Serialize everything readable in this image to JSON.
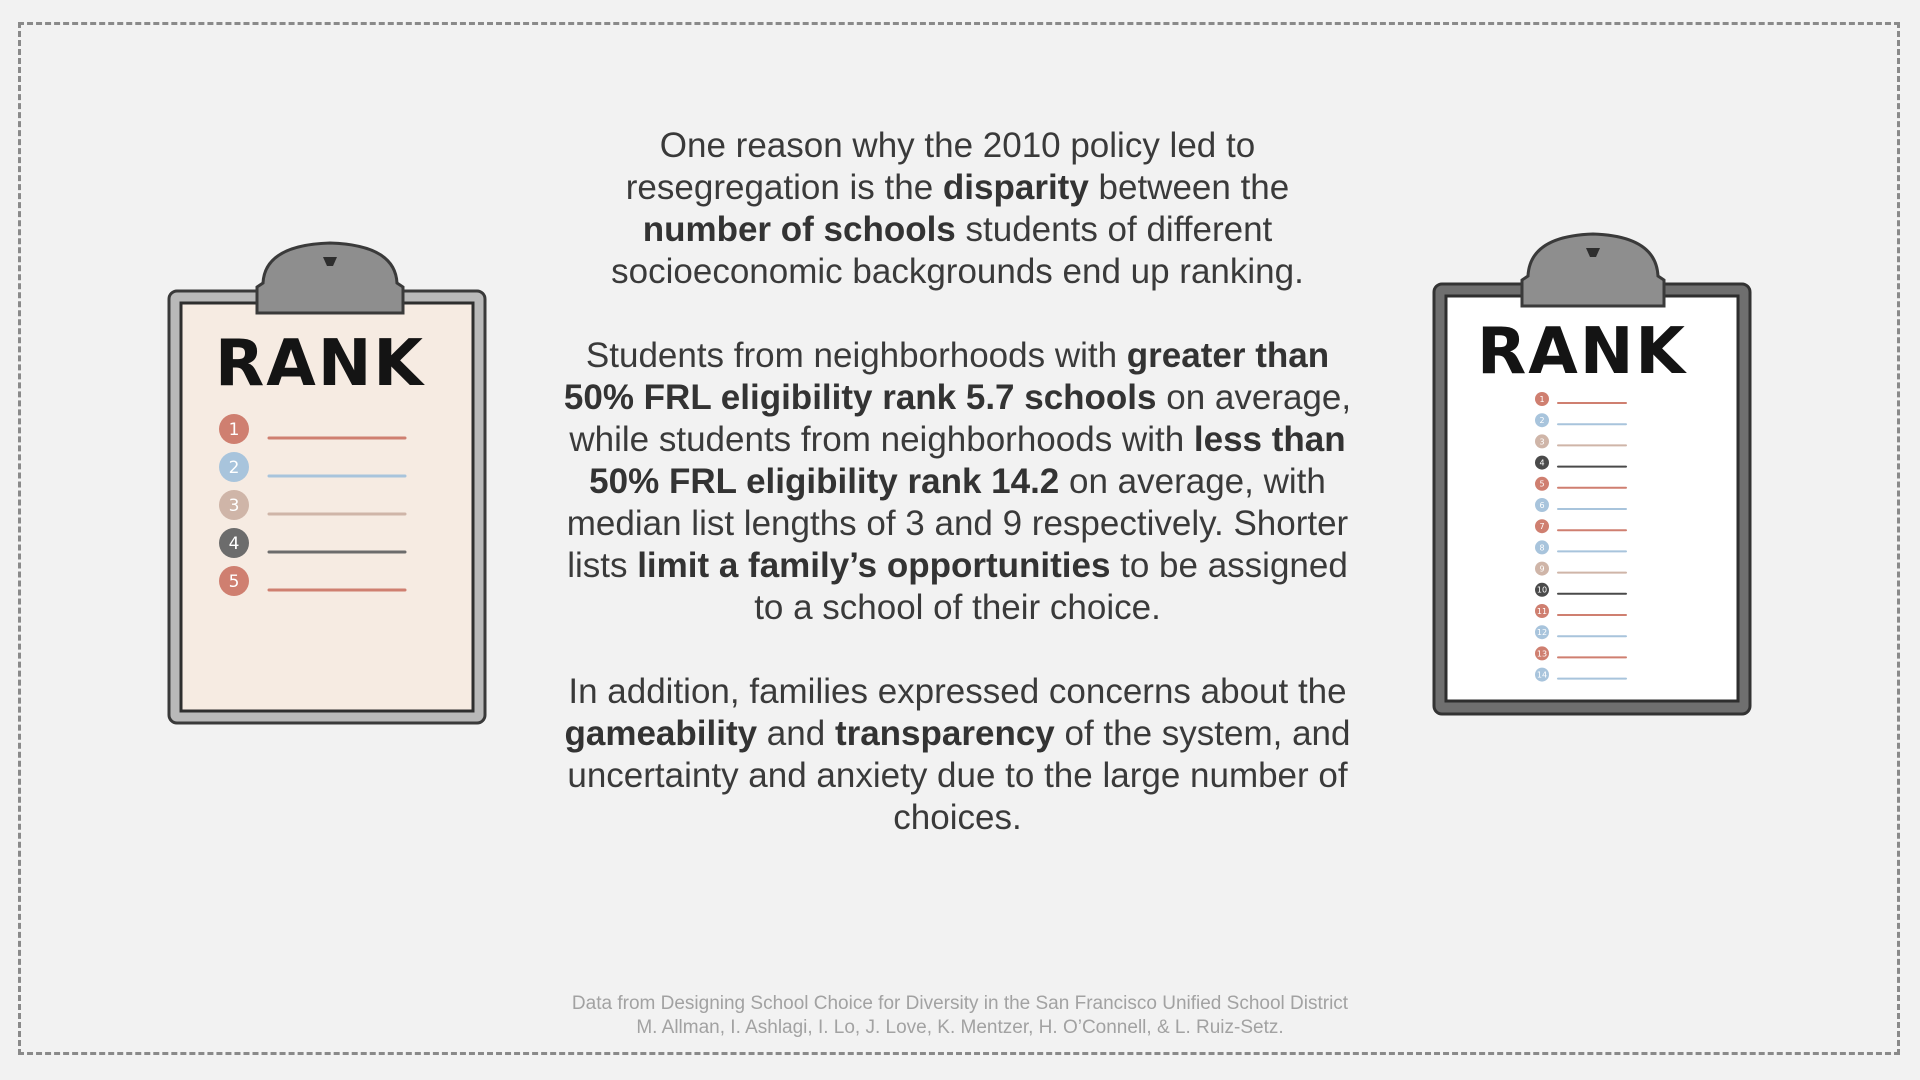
{
  "paragraphs": [
    [
      {
        "t": "One reason why the 2010 policy led to resegregation is the ",
        "b": false
      },
      {
        "t": "disparity",
        "b": true
      },
      {
        "t": " between the ",
        "b": false
      },
      {
        "t": "number of schools",
        "b": true
      },
      {
        "t": " students of different socioeconomic backgrounds end up ranking.",
        "b": false
      }
    ],
    [
      {
        "t": "Students from neighborhoods with ",
        "b": false
      },
      {
        "t": "greater than 50% FRL eligibility rank 5.7 schools",
        "b": true
      },
      {
        "t": " on average, while students from neighborhoods with ",
        "b": false
      },
      {
        "t": "less than 50% FRL eligibility rank 14.2",
        "b": true
      },
      {
        "t": " on average, with median list lengths of 3 and 9 respectively. Shorter lists ",
        "b": false
      },
      {
        "t": "limit a family’s opportunities",
        "b": true
      },
      {
        "t": " to be assigned to a school of their choice.",
        "b": false
      }
    ],
    [
      {
        "t": "In addition, families expressed concerns about the ",
        "b": false
      },
      {
        "t": "gameability",
        "b": true
      },
      {
        "t": " and ",
        "b": false
      },
      {
        "t": "transparency",
        "b": true
      },
      {
        "t": " of the system, and uncertainty and anxiety due to the large number of choices.",
        "b": false
      }
    ]
  ],
  "source": {
    "line1": "Data from Designing School Choice for Diversity in the San Francisco Unified School District",
    "line2": "M. Allman, I. Ashlagi, I. Lo, J. Love, K. Mentzer, H. O’Connell, & L. Ruiz-Setz."
  },
  "clipboard_left": {
    "title": "RANK",
    "paper_color": "#f6ebe2",
    "items": [
      "1",
      "2",
      "3",
      "4",
      "5"
    ],
    "colors": [
      "#cf7f70",
      "#a8c4dc",
      "#cfb5a8",
      "#6c6c6c",
      "#cf7f70"
    ]
  },
  "clipboard_right": {
    "title": "RANK",
    "paper_color": "#ffffff",
    "items": [
      "1",
      "2",
      "3",
      "4",
      "5",
      "6",
      "7",
      "8",
      "9",
      "10",
      "11",
      "12",
      "13",
      "14"
    ],
    "colors": [
      "#cf7f70",
      "#a8c4dc",
      "#cfb5a8",
      "#4a4a4a",
      "#cf7f70",
      "#a8c4dc",
      "#cf7f70",
      "#a8c4dc",
      "#cfb5a8",
      "#4a4a4a",
      "#cf7f70",
      "#a8c4dc",
      "#cf7f70",
      "#a8c4dc"
    ]
  }
}
